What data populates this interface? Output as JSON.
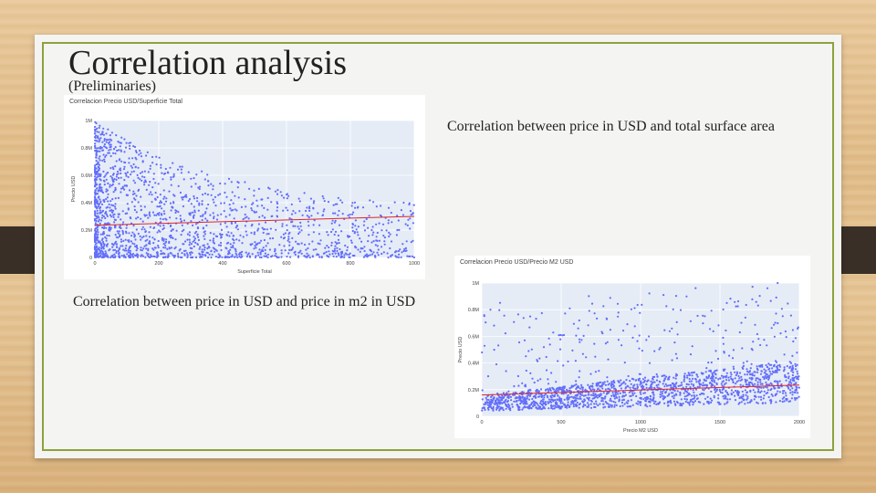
{
  "slide": {
    "title": "Correlation analysis",
    "subtitle": "(Preliminaries)",
    "text_top_right": "Correlation between price in USD and total surface area",
    "text_bottom_left": "Correlation between price in USD and price in m2 in USD"
  },
  "colors": {
    "frame": "#8ea13c",
    "points": "#636efa",
    "trend": "#e0262a",
    "plot_bg": "#e5ecf6"
  },
  "chart_data": [
    {
      "type": "scatter",
      "title": "Correlacion Precio USD/Superficie Total",
      "xlabel": "Superficie Total",
      "ylabel": "Precio USD",
      "xlim": [
        0,
        1000
      ],
      "ylim": [
        0,
        1000000
      ],
      "xticks": [
        0,
        200,
        400,
        600,
        800,
        1000
      ],
      "yticks": [
        0,
        200000,
        400000,
        600000,
        800000,
        1000000
      ],
      "xtick_labels": [
        "0",
        "200",
        "400",
        "600",
        "800",
        "1000"
      ],
      "ytick_labels": [
        "0",
        "0.2M",
        "0.4M",
        "0.6M",
        "0.8M",
        "1M"
      ],
      "trend_line": {
        "x": [
          0,
          1000
        ],
        "y": [
          235000,
          300000
        ]
      }
    },
    {
      "type": "scatter",
      "title": "Correlacion Precio USD/Precio M2 USD",
      "xlabel": "Precio M2 USD",
      "ylabel": "Precio USD",
      "xlim": [
        0,
        2000
      ],
      "ylim": [
        0,
        1000000
      ],
      "xticks": [
        0,
        500,
        1000,
        1500,
        2000
      ],
      "yticks": [
        0,
        200000,
        400000,
        600000,
        800000,
        1000000
      ],
      "xtick_labels": [
        "0",
        "500",
        "1000",
        "1500",
        "2000"
      ],
      "ytick_labels": [
        "0",
        "0.2M",
        "0.4M",
        "0.6M",
        "0.8M",
        "1M"
      ],
      "trend_line": {
        "x": [
          0,
          2000
        ],
        "y": [
          160000,
          235000
        ]
      }
    }
  ]
}
